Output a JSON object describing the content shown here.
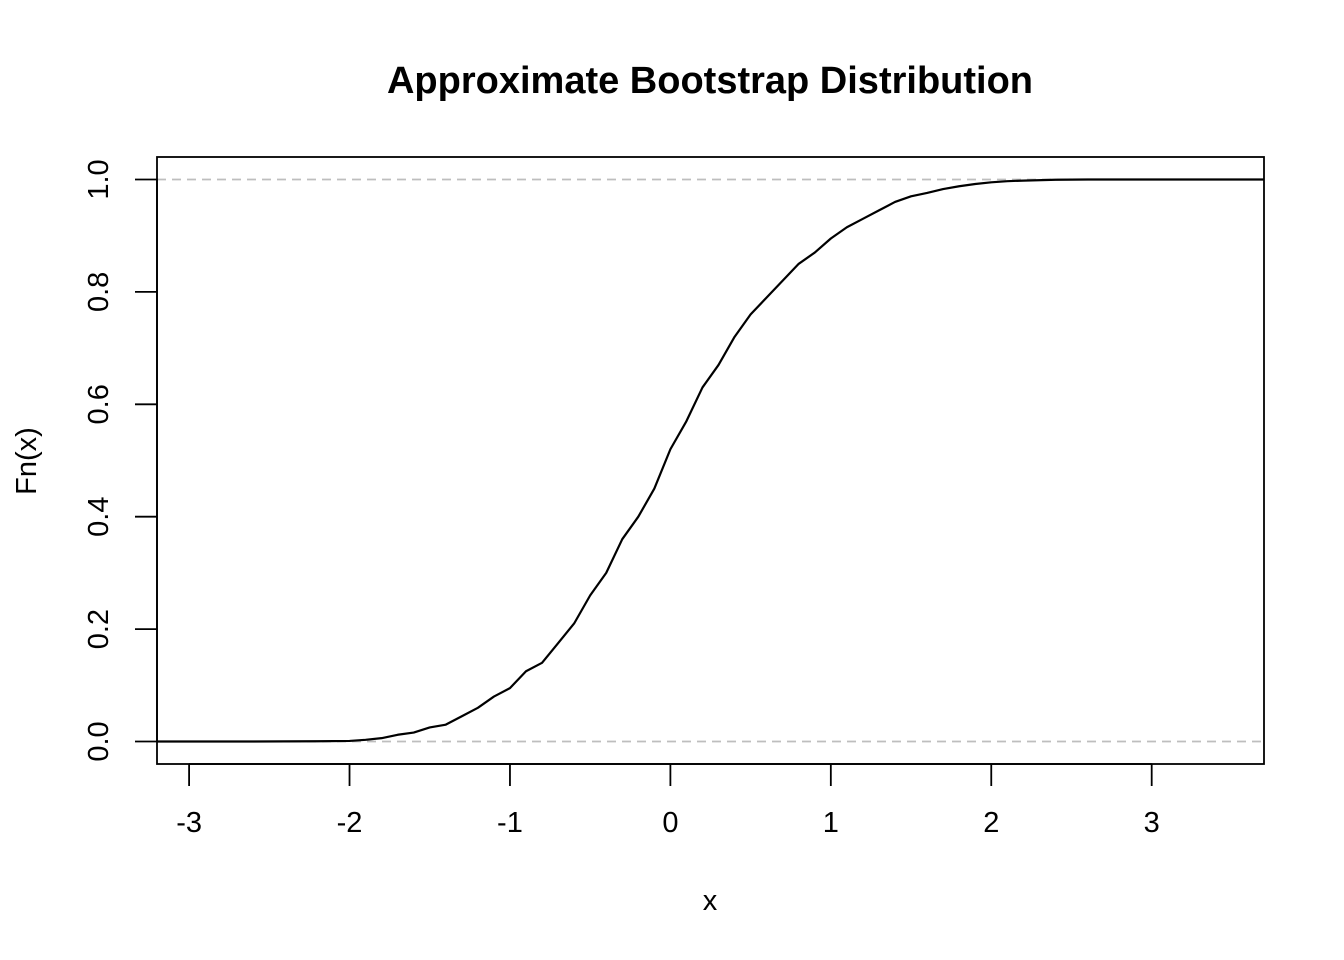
{
  "chart_data": {
    "type": "line",
    "title": "Approximate Bootstrap Distribution",
    "xlabel": "x",
    "ylabel": "Fn(x)",
    "xlim": [
      -3.2,
      3.7
    ],
    "ylim": [
      -0.04,
      1.04
    ],
    "x_ticks": [
      -3,
      -2,
      -1,
      0,
      1,
      2,
      3
    ],
    "y_ticks": [
      0.0,
      0.2,
      0.4,
      0.6,
      0.8,
      1.0
    ],
    "x_tick_labels": [
      "-3",
      "-2",
      "-1",
      "0",
      "1",
      "2",
      "3"
    ],
    "y_tick_labels": [
      "0.0",
      "0.2",
      "0.4",
      "0.6",
      "0.8",
      "1.0"
    ],
    "reference_lines": [
      0,
      1
    ],
    "reference_line_style": "dashed",
    "grid": false,
    "colors": {
      "curve": "#000000",
      "reference_line": "#bebebe",
      "axes": "#000000"
    },
    "series": [
      {
        "x": [
          -3.2,
          -2.6,
          -2.2,
          -2.0,
          -1.9,
          -1.8,
          -1.7,
          -1.6,
          -1.5,
          -1.4,
          -1.3,
          -1.2,
          -1.1,
          -1.0,
          -0.9,
          -0.8,
          -0.7,
          -0.6,
          -0.5,
          -0.4,
          -0.3,
          -0.2,
          -0.1,
          0.0,
          0.1,
          0.2,
          0.3,
          0.4,
          0.5,
          0.6,
          0.7,
          0.8,
          0.9,
          1.0,
          1.1,
          1.2,
          1.3,
          1.4,
          1.5,
          1.6,
          1.7,
          1.8,
          1.9,
          2.0,
          2.1,
          2.2,
          2.4,
          2.6,
          3.0,
          3.7
        ],
        "y": [
          0.0,
          0.0,
          0.0005,
          0.001,
          0.003,
          0.006,
          0.012,
          0.016,
          0.025,
          0.03,
          0.045,
          0.06,
          0.08,
          0.095,
          0.125,
          0.14,
          0.175,
          0.21,
          0.26,
          0.3,
          0.36,
          0.4,
          0.45,
          0.52,
          0.57,
          0.63,
          0.67,
          0.72,
          0.76,
          0.79,
          0.82,
          0.85,
          0.87,
          0.895,
          0.915,
          0.93,
          0.945,
          0.96,
          0.97,
          0.976,
          0.983,
          0.988,
          0.992,
          0.995,
          0.997,
          0.998,
          0.9995,
          1.0,
          1.0,
          1.0
        ]
      }
    ]
  }
}
